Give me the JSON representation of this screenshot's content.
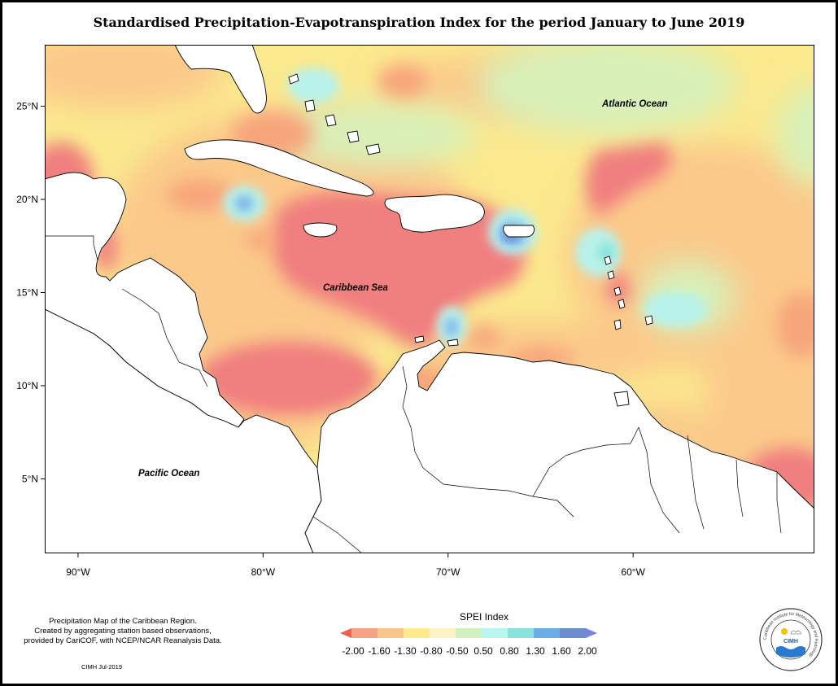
{
  "title": "Standardised Precipitation-Evapotranspiration Index for the period January to June 2019",
  "axes": {
    "lat_ticks": [
      {
        "value": 25,
        "label": "25°N"
      },
      {
        "value": 20,
        "label": "20°N"
      },
      {
        "value": 15,
        "label": "15°N"
      },
      {
        "value": 10,
        "label": "10°N"
      },
      {
        "value": 5,
        "label": "5°N"
      }
    ],
    "lon_ticks": [
      {
        "value": -90,
        "label": "90°W"
      },
      {
        "value": -80,
        "label": "80°W"
      },
      {
        "value": -70,
        "label": "70°W"
      },
      {
        "value": -60,
        "label": "60°W"
      }
    ],
    "lon_range": [
      -91.8,
      -50.2
    ],
    "lat_range": [
      1.0,
      28.3
    ]
  },
  "map_labels": {
    "atlantic": "Atlantic Ocean",
    "caribbean": "Caribbean Sea",
    "pacific": "Pacific Ocean"
  },
  "legend": {
    "title": "SPEI Index",
    "labels": [
      "-2.00",
      "-1.60",
      "-1.30",
      "-0.80",
      "-0.50",
      "0.50",
      "0.80",
      "1.30",
      "1.60",
      "2.00"
    ],
    "colors": [
      "#f0604c",
      "#f4a184",
      "#fbc589",
      "#fbe98c",
      "#fbf2c6",
      "#d2f0bf",
      "#b9f6ec",
      "#86e2da",
      "#6aaee8",
      "#6c8ed0",
      "#7a84dc"
    ]
  },
  "notes": {
    "line1": "Precipitation Map of the Caribbean Region.",
    "line2": "Created by aggregating station based observations,",
    "line3": "provided by CariCOF, with NCEP/NCAR Reanalysis Data.",
    "credit": "CIMH Jul-2019"
  },
  "logo": {
    "ring_text": "Caribbean Institute for Meteorology and Hydrology",
    "center_text": "CIMH"
  },
  "colors": {
    "very_dry": "#f07f7f",
    "dry": "#f7a57c",
    "moderately_dry": "#fbc98a",
    "slightly_dry": "#fbe98e",
    "near_normal": "#d8f0b8",
    "wet": "#b8f2ea",
    "very_wet": "#7fb6ec",
    "extremely_wet": "#6a7ed4",
    "land": "#ffffff"
  }
}
